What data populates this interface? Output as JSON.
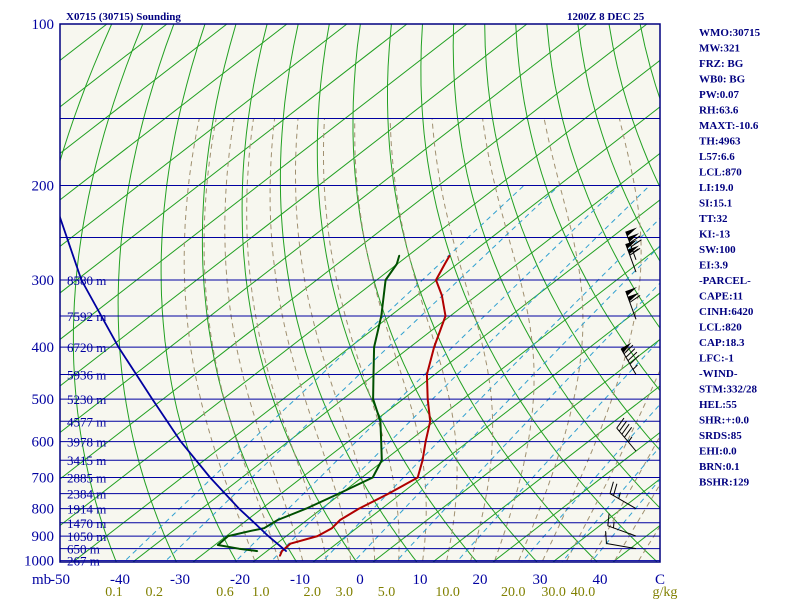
{
  "header": {
    "station": "X0715 (30715) Sounding",
    "time": "1200Z  8 DEC 25"
  },
  "indices": [
    "WMO:30715",
    "MW:321",
    "FRZ: BG",
    "WB0: BG",
    "PW:0.07",
    "RH:63.6",
    "MAXT:-10.6",
    "TH:4963",
    "L57:6.6",
    "LCL:870",
    "LI:19.0",
    "SI:15.1",
    "TT:32",
    "KI:-13",
    "SW:100",
    "EI:3.9",
    "-PARCEL-",
    "CAPE:11",
    "CINH:6420",
    "LCL:820",
    "CAP:18.3",
    "LFC:-1",
    "-WIND-",
    "STM:332/28",
    "HEL:55",
    "SHR:+:0.0",
    "SRDS:85",
    "EHI:0.0",
    "BRN:0.1",
    "BSHR:129"
  ],
  "colors": {
    "background": "#f7f7ef",
    "frame": "#000080",
    "isobar": "#0000a0",
    "isotherm": "#22a022",
    "dry_adiabat": "#22a022",
    "moist_adiabat": "#a09070",
    "mixing_ratio": "#30a0d0",
    "temperature": "#b00000",
    "dewpoint": "#005000",
    "parcel": "#0000a0",
    "wind_barb": "#000000"
  },
  "chart_data": {
    "type": "skew-t log-p sounding",
    "y_axis": {
      "units_label": "mb",
      "scale": "log",
      "ylim": [
        1000,
        100
      ],
      "ticks": [
        "100",
        "200",
        "300",
        "400",
        "500",
        "600",
        "700",
        "800",
        "900",
        "1000"
      ]
    },
    "x_axis": {
      "ticks": [
        "-50",
        "-40",
        "-30",
        "-20",
        "-10",
        "0",
        "10",
        "20",
        "30",
        "40",
        "C"
      ],
      "xlim": [
        -50,
        50
      ]
    },
    "mixing_ratio_labels": [
      "0.1",
      "0.2",
      "0.6",
      "1.0",
      "2.0",
      "3.0",
      "5.0",
      "10.0",
      "20.0",
      "30.0",
      "40.0",
      "g/kg"
    ],
    "height_labels": [
      {
        "p": 300,
        "label": "8580 m"
      },
      {
        "p": 350,
        "label": "7592 m"
      },
      {
        "p": 400,
        "label": "6720 m"
      },
      {
        "p": 450,
        "label": "5936 m"
      },
      {
        "p": 500,
        "label": "5230 m"
      },
      {
        "p": 550,
        "label": "4577 m"
      },
      {
        "p": 600,
        "label": "3978 m"
      },
      {
        "p": 650,
        "label": "3415 m"
      },
      {
        "p": 700,
        "label": "2885 m"
      },
      {
        "p": 750,
        "label": "2384 m"
      },
      {
        "p": 800,
        "label": "1914 m"
      },
      {
        "p": 850,
        "label": "1470 m"
      },
      {
        "p": 900,
        "label": "1050 m"
      },
      {
        "p": 950,
        "label": "650 m"
      },
      {
        "p": 1000,
        "label": "267 m"
      }
    ],
    "series": [
      {
        "key": "temperature",
        "points": [
          {
            "p": 980,
            "t": -16.8
          },
          {
            "p": 960,
            "t": -17.5
          },
          {
            "p": 930,
            "t": -17.7
          },
          {
            "p": 900,
            "t": -14.8
          },
          {
            "p": 870,
            "t": -14.1
          },
          {
            "p": 840,
            "t": -14.5
          },
          {
            "p": 800,
            "t": -13.8
          },
          {
            "p": 750,
            "t": -12.1
          },
          {
            "p": 700,
            "t": -10.7
          },
          {
            "p": 650,
            "t": -13.6
          },
          {
            "p": 600,
            "t": -17.1
          },
          {
            "p": 550,
            "t": -20.7
          },
          {
            "p": 500,
            "t": -25.9
          },
          {
            "p": 450,
            "t": -31.3
          },
          {
            "p": 400,
            "t": -36.0
          },
          {
            "p": 350,
            "t": -40.8
          },
          {
            "p": 320,
            "t": -45.9
          },
          {
            "p": 300,
            "t": -50.1
          },
          {
            "p": 280,
            "t": -52.1
          },
          {
            "p": 270,
            "t": -53.1
          }
        ]
      },
      {
        "key": "dewpoint",
        "points": [
          {
            "p": 960,
            "t": -21.6
          },
          {
            "p": 950,
            "t": -25.2
          },
          {
            "p": 935,
            "t": -29.5
          },
          {
            "p": 900,
            "t": -29.7
          },
          {
            "p": 880,
            "t": -27.0
          },
          {
            "p": 870,
            "t": -25.4
          },
          {
            "p": 840,
            "t": -24.9
          },
          {
            "p": 800,
            "t": -22.6
          },
          {
            "p": 750,
            "t": -20.4
          },
          {
            "p": 700,
            "t": -18.2
          },
          {
            "p": 650,
            "t": -20.4
          },
          {
            "p": 600,
            "t": -24.5
          },
          {
            "p": 550,
            "t": -29.0
          },
          {
            "p": 500,
            "t": -35.0
          },
          {
            "p": 450,
            "t": -40.2
          },
          {
            "p": 400,
            "t": -46.0
          },
          {
            "p": 350,
            "t": -51.5
          },
          {
            "p": 300,
            "t": -58.5
          },
          {
            "p": 280,
            "t": -60.1
          },
          {
            "p": 270,
            "t": -61.5
          }
        ]
      },
      {
        "key": "parcel",
        "points": [
          {
            "p": 960,
            "t": -16.8
          },
          {
            "p": 900,
            "t": -23.0
          },
          {
            "p": 850,
            "t": -28.2
          },
          {
            "p": 800,
            "t": -33.8
          },
          {
            "p": 700,
            "t": -45.3
          },
          {
            "p": 600,
            "t": -57.9
          },
          {
            "p": 500,
            "t": -71.8
          },
          {
            "p": 400,
            "t": -88.6
          },
          {
            "p": 300,
            "t": -109.2
          },
          {
            "p": 200,
            "t": -134.9
          },
          {
            "p": 150,
            "t": -152.2
          },
          {
            "p": 100,
            "t": -176.3
          }
        ]
      }
    ],
    "wind_barbs": [
      {
        "p": 275,
        "dir": 340,
        "speed_kt": 125
      },
      {
        "p": 290,
        "dir": 340,
        "speed_kt": 110
      },
      {
        "p": 355,
        "dir": 340,
        "speed_kt": 110
      },
      {
        "p": 450,
        "dir": 330,
        "speed_kt": 95
      },
      {
        "p": 625,
        "dir": 320,
        "speed_kt": 45
      },
      {
        "p": 800,
        "dir": 300,
        "speed_kt": 25
      },
      {
        "p": 900,
        "dir": 290,
        "speed_kt": 15
      },
      {
        "p": 950,
        "dir": 280,
        "speed_kt": 10
      }
    ]
  }
}
